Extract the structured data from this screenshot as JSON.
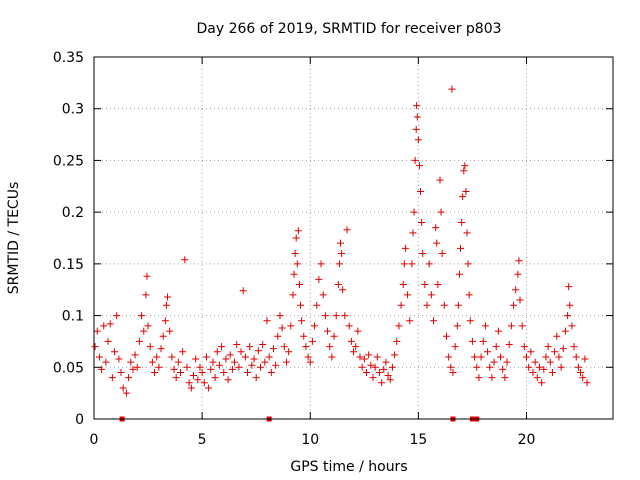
{
  "chart_data": {
    "type": "scatter",
    "title": "Day 266 of 2019, SRMTID for receiver p803",
    "xlabel": "GPS time / hours",
    "ylabel": "SRMTID / TECUs",
    "xlim": [
      0,
      24
    ],
    "ylim": [
      0,
      0.35
    ],
    "grid": true,
    "xticks": [
      0,
      5,
      10,
      15,
      20
    ],
    "xtick_labels": [
      "0",
      "5",
      "10",
      "15",
      "20"
    ],
    "yticks": [
      0,
      0.05,
      0.1,
      0.15,
      0.2,
      0.25,
      0.3,
      0.35
    ],
    "ytick_labels": [
      "0",
      "0.05",
      "0.1",
      "0.15",
      "0.2",
      "0.25",
      "0.3",
      "0.35"
    ],
    "marker": "+",
    "marker_color": "#e00000",
    "baseline_markers_x": [
      1.3,
      8.1,
      16.6,
      17.5,
      17.7
    ],
    "series": [
      {
        "name": "SRMTID",
        "points": [
          [
            0.05,
            0.07
          ],
          [
            0.15,
            0.085
          ],
          [
            0.25,
            0.06
          ],
          [
            0.35,
            0.048
          ],
          [
            0.45,
            0.09
          ],
          [
            0.55,
            0.055
          ],
          [
            0.65,
            0.075
          ],
          [
            0.75,
            0.092
          ],
          [
            0.85,
            0.04
          ],
          [
            0.95,
            0.065
          ],
          [
            1.05,
            0.1
          ],
          [
            1.15,
            0.058
          ],
          [
            1.25,
            0.045
          ],
          [
            1.35,
            0.03
          ],
          [
            1.5,
            0.025
          ],
          [
            1.6,
            0.04
          ],
          [
            1.7,
            0.055
          ],
          [
            1.8,
            0.048
          ],
          [
            1.9,
            0.062
          ],
          [
            2.0,
            0.05
          ],
          [
            2.1,
            0.075
          ],
          [
            2.2,
            0.1
          ],
          [
            2.3,
            0.085
          ],
          [
            2.4,
            0.12
          ],
          [
            2.45,
            0.138
          ],
          [
            2.5,
            0.09
          ],
          [
            2.6,
            0.07
          ],
          [
            2.7,
            0.055
          ],
          [
            2.8,
            0.045
          ],
          [
            2.9,
            0.06
          ],
          [
            3.0,
            0.05
          ],
          [
            3.1,
            0.068
          ],
          [
            3.2,
            0.08
          ],
          [
            3.3,
            0.095
          ],
          [
            3.35,
            0.11
          ],
          [
            3.4,
            0.118
          ],
          [
            3.5,
            0.085
          ],
          [
            3.6,
            0.06
          ],
          [
            3.7,
            0.048
          ],
          [
            3.8,
            0.04
          ],
          [
            3.9,
            0.055
          ],
          [
            4.0,
            0.045
          ],
          [
            4.1,
            0.065
          ],
          [
            4.2,
            0.154
          ],
          [
            4.3,
            0.05
          ],
          [
            4.4,
            0.035
          ],
          [
            4.5,
            0.03
          ],
          [
            4.6,
            0.042
          ],
          [
            4.7,
            0.058
          ],
          [
            4.8,
            0.038
          ],
          [
            4.9,
            0.05
          ],
          [
            5.0,
            0.045
          ],
          [
            5.1,
            0.035
          ],
          [
            5.2,
            0.06
          ],
          [
            5.3,
            0.03
          ],
          [
            5.4,
            0.048
          ],
          [
            5.5,
            0.055
          ],
          [
            5.6,
            0.04
          ],
          [
            5.7,
            0.065
          ],
          [
            5.8,
            0.052
          ],
          [
            5.9,
            0.07
          ],
          [
            6.0,
            0.045
          ],
          [
            6.1,
            0.058
          ],
          [
            6.2,
            0.038
          ],
          [
            6.3,
            0.062
          ],
          [
            6.4,
            0.048
          ],
          [
            6.5,
            0.055
          ],
          [
            6.6,
            0.072
          ],
          [
            6.7,
            0.05
          ],
          [
            6.8,
            0.065
          ],
          [
            6.9,
            0.124
          ],
          [
            7.0,
            0.06
          ],
          [
            7.1,
            0.045
          ],
          [
            7.2,
            0.07
          ],
          [
            7.3,
            0.052
          ],
          [
            7.4,
            0.058
          ],
          [
            7.5,
            0.04
          ],
          [
            7.6,
            0.066
          ],
          [
            7.7,
            0.05
          ],
          [
            7.8,
            0.072
          ],
          [
            7.9,
            0.055
          ],
          [
            8.0,
            0.095
          ],
          [
            8.1,
            0.06
          ],
          [
            8.2,
            0.045
          ],
          [
            8.3,
            0.068
          ],
          [
            8.4,
            0.052
          ],
          [
            8.5,
            0.08
          ],
          [
            8.6,
            0.1
          ],
          [
            8.7,
            0.088
          ],
          [
            8.8,
            0.07
          ],
          [
            8.9,
            0.055
          ],
          [
            9.0,
            0.065
          ],
          [
            9.1,
            0.09
          ],
          [
            9.2,
            0.12
          ],
          [
            9.25,
            0.14
          ],
          [
            9.3,
            0.16
          ],
          [
            9.35,
            0.175
          ],
          [
            9.4,
            0.15
          ],
          [
            9.45,
            0.182
          ],
          [
            9.5,
            0.13
          ],
          [
            9.55,
            0.11
          ],
          [
            9.6,
            0.095
          ],
          [
            9.7,
            0.08
          ],
          [
            9.8,
            0.07
          ],
          [
            9.9,
            0.06
          ],
          [
            10.0,
            0.055
          ],
          [
            10.1,
            0.075
          ],
          [
            10.2,
            0.09
          ],
          [
            10.3,
            0.11
          ],
          [
            10.4,
            0.135
          ],
          [
            10.5,
            0.15
          ],
          [
            10.6,
            0.12
          ],
          [
            10.7,
            0.1
          ],
          [
            10.8,
            0.085
          ],
          [
            10.9,
            0.07
          ],
          [
            11.0,
            0.06
          ],
          [
            11.1,
            0.08
          ],
          [
            11.2,
            0.1
          ],
          [
            11.3,
            0.13
          ],
          [
            11.35,
            0.15
          ],
          [
            11.4,
            0.17
          ],
          [
            11.45,
            0.16
          ],
          [
            11.5,
            0.125
          ],
          [
            11.6,
            0.1
          ],
          [
            11.7,
            0.183
          ],
          [
            11.8,
            0.09
          ],
          [
            11.9,
            0.075
          ],
          [
            12.0,
            0.065
          ],
          [
            12.1,
            0.07
          ],
          [
            12.2,
            0.085
          ],
          [
            12.3,
            0.06
          ],
          [
            12.4,
            0.05
          ],
          [
            12.5,
            0.058
          ],
          [
            12.6,
            0.045
          ],
          [
            12.7,
            0.062
          ],
          [
            12.8,
            0.052
          ],
          [
            12.9,
            0.04
          ],
          [
            13.0,
            0.05
          ],
          [
            13.1,
            0.06
          ],
          [
            13.2,
            0.045
          ],
          [
            13.3,
            0.035
          ],
          [
            13.4,
            0.048
          ],
          [
            13.5,
            0.055
          ],
          [
            13.6,
            0.042
          ],
          [
            13.7,
            0.038
          ],
          [
            13.8,
            0.05
          ],
          [
            13.9,
            0.062
          ],
          [
            14.0,
            0.075
          ],
          [
            14.1,
            0.09
          ],
          [
            14.2,
            0.11
          ],
          [
            14.3,
            0.13
          ],
          [
            14.35,
            0.15
          ],
          [
            14.4,
            0.165
          ],
          [
            14.5,
            0.12
          ],
          [
            14.6,
            0.095
          ],
          [
            14.7,
            0.15
          ],
          [
            14.75,
            0.18
          ],
          [
            14.8,
            0.2
          ],
          [
            14.85,
            0.25
          ],
          [
            14.9,
            0.28
          ],
          [
            14.92,
            0.303
          ],
          [
            14.95,
            0.292
          ],
          [
            15.0,
            0.27
          ],
          [
            15.05,
            0.245
          ],
          [
            15.1,
            0.22
          ],
          [
            15.15,
            0.19
          ],
          [
            15.2,
            0.16
          ],
          [
            15.3,
            0.13
          ],
          [
            15.4,
            0.11
          ],
          [
            15.5,
            0.15
          ],
          [
            15.6,
            0.12
          ],
          [
            15.7,
            0.095
          ],
          [
            15.8,
            0.185
          ],
          [
            15.85,
            0.17
          ],
          [
            15.9,
            0.13
          ],
          [
            16.0,
            0.231
          ],
          [
            16.05,
            0.2
          ],
          [
            16.1,
            0.16
          ],
          [
            16.2,
            0.11
          ],
          [
            16.3,
            0.08
          ],
          [
            16.4,
            0.06
          ],
          [
            16.5,
            0.05
          ],
          [
            16.55,
            0.319
          ],
          [
            16.6,
            0.045
          ],
          [
            16.7,
            0.07
          ],
          [
            16.8,
            0.09
          ],
          [
            16.85,
            0.11
          ],
          [
            16.9,
            0.14
          ],
          [
            16.95,
            0.165
          ],
          [
            17.0,
            0.19
          ],
          [
            17.05,
            0.215
          ],
          [
            17.1,
            0.24
          ],
          [
            17.15,
            0.245
          ],
          [
            17.2,
            0.22
          ],
          [
            17.25,
            0.18
          ],
          [
            17.3,
            0.15
          ],
          [
            17.35,
            0.12
          ],
          [
            17.4,
            0.095
          ],
          [
            17.5,
            0.075
          ],
          [
            17.6,
            0.06
          ],
          [
            17.7,
            0.05
          ],
          [
            17.8,
            0.04
          ],
          [
            17.9,
            0.06
          ],
          [
            18.0,
            0.075
          ],
          [
            18.1,
            0.09
          ],
          [
            18.2,
            0.065
          ],
          [
            18.3,
            0.05
          ],
          [
            18.4,
            0.04
          ],
          [
            18.5,
            0.055
          ],
          [
            18.6,
            0.07
          ],
          [
            18.7,
            0.085
          ],
          [
            18.8,
            0.06
          ],
          [
            18.9,
            0.048
          ],
          [
            19.0,
            0.04
          ],
          [
            19.1,
            0.055
          ],
          [
            19.2,
            0.072
          ],
          [
            19.3,
            0.09
          ],
          [
            19.4,
            0.11
          ],
          [
            19.5,
            0.125
          ],
          [
            19.6,
            0.14
          ],
          [
            19.65,
            0.153
          ],
          [
            19.7,
            0.115
          ],
          [
            19.8,
            0.09
          ],
          [
            19.9,
            0.07
          ],
          [
            20.0,
            0.06
          ],
          [
            20.1,
            0.05
          ],
          [
            20.2,
            0.065
          ],
          [
            20.3,
            0.045
          ],
          [
            20.4,
            0.055
          ],
          [
            20.5,
            0.04
          ],
          [
            20.6,
            0.05
          ],
          [
            20.7,
            0.035
          ],
          [
            20.8,
            0.048
          ],
          [
            20.9,
            0.06
          ],
          [
            21.0,
            0.07
          ],
          [
            21.1,
            0.055
          ],
          [
            21.2,
            0.045
          ],
          [
            21.3,
            0.065
          ],
          [
            21.4,
            0.08
          ],
          [
            21.5,
            0.06
          ],
          [
            21.6,
            0.05
          ],
          [
            21.7,
            0.068
          ],
          [
            21.8,
            0.085
          ],
          [
            21.9,
            0.1
          ],
          [
            21.95,
            0.128
          ],
          [
            22.0,
            0.11
          ],
          [
            22.1,
            0.09
          ],
          [
            22.2,
            0.07
          ],
          [
            22.3,
            0.06
          ],
          [
            22.4,
            0.05
          ],
          [
            22.5,
            0.045
          ],
          [
            22.6,
            0.04
          ],
          [
            22.7,
            0.058
          ],
          [
            22.8,
            0.035
          ]
        ]
      }
    ]
  }
}
